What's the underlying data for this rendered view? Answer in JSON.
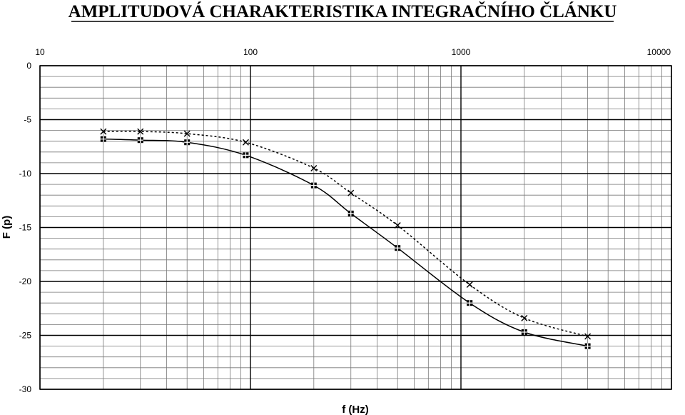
{
  "chart_data": {
    "type": "line",
    "title": "AMPLITUDOVÁ CHARAKTERISTIKA INTEGRAČNÍHO ČLÁNKU",
    "xlabel": "f (Hz)",
    "ylabel": "F (p)",
    "x_scale": "log",
    "xlim": [
      10,
      10000
    ],
    "ylim": [
      -30,
      0
    ],
    "x_ticks": [
      "10",
      "100",
      "1000",
      "10000"
    ],
    "y_ticks": [
      "0",
      "-5",
      "-10",
      "-15",
      "-20",
      "-25",
      "-30"
    ],
    "x_tick_values": [
      10,
      100,
      1000,
      10000
    ],
    "y_tick_values": [
      0,
      -5,
      -10,
      -15,
      -20,
      -25,
      -30
    ],
    "grid": true,
    "series": [
      {
        "marker": "x",
        "line": "dotted",
        "color": "#000000",
        "x": [
          20,
          30,
          50,
          95,
          200,
          300,
          500,
          1100,
          2000,
          4000
        ],
        "y": [
          -6.1,
          -6.1,
          -6.3,
          -7.1,
          -9.5,
          -11.8,
          -14.8,
          -20.3,
          -23.4,
          -25.1
        ]
      },
      {
        "marker": "square",
        "line": "solid",
        "color": "#000000",
        "x": [
          20,
          30,
          50,
          95,
          200,
          300,
          500,
          1100,
          2000,
          4000
        ],
        "y": [
          -6.8,
          -6.9,
          -7.1,
          -8.3,
          -11.1,
          -13.7,
          -16.9,
          -22.0,
          -24.7,
          -26.0
        ]
      }
    ]
  }
}
